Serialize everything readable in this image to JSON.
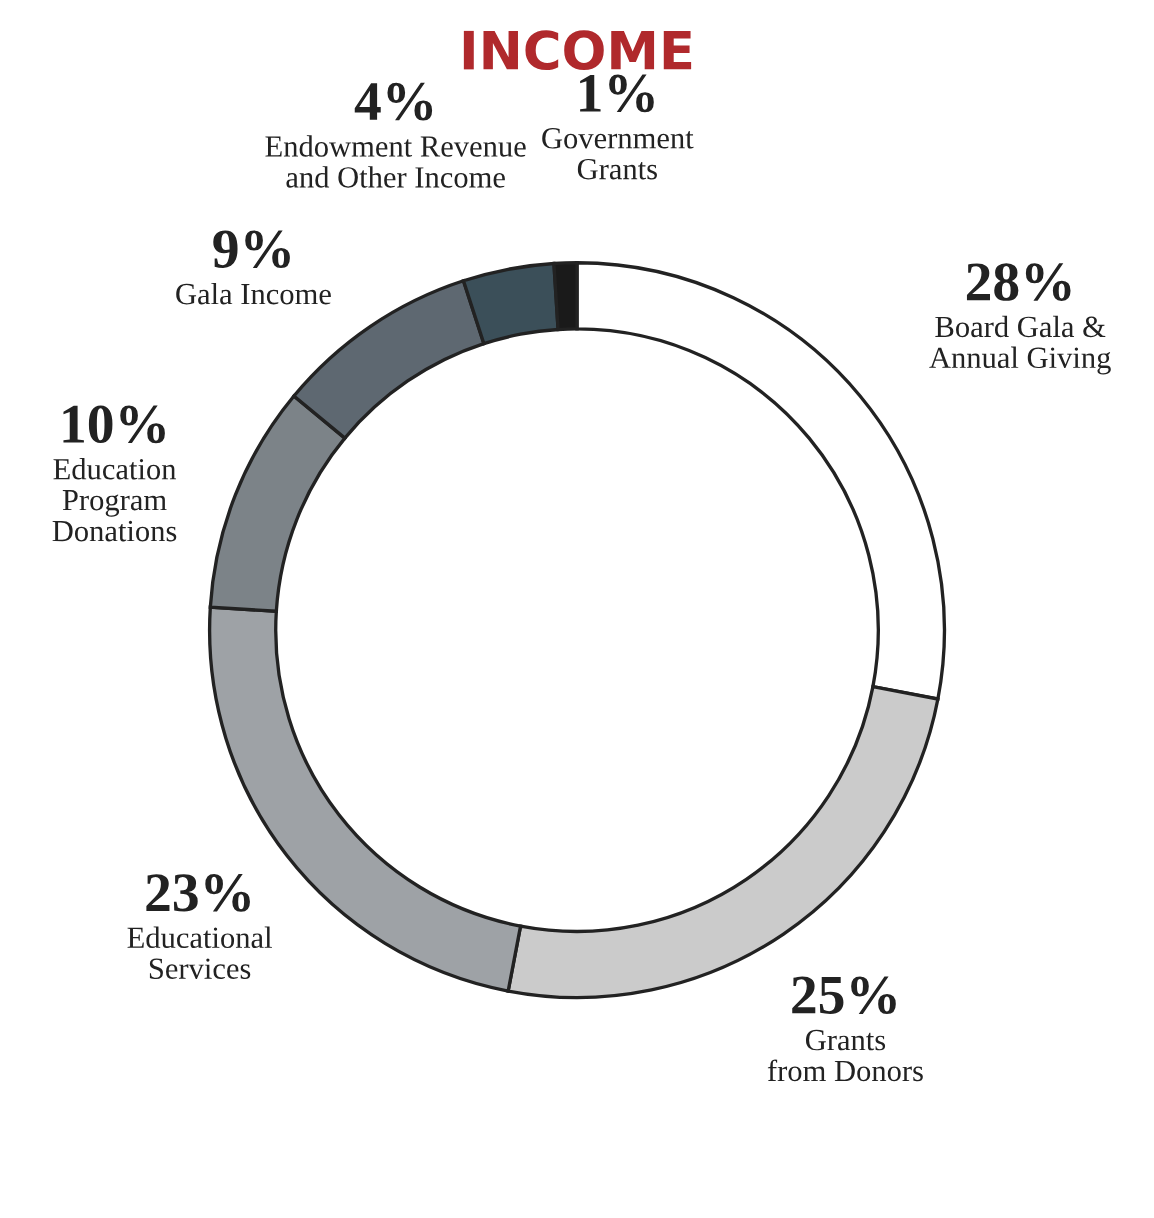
{
  "chart_data": {
    "type": "donut",
    "title": "INCOME",
    "categories": [
      "Board Gala &\nAnnual Giving",
      "Grants\nfrom Donors",
      "Educational\nServices",
      "Education\nProgram\nDonations",
      "Gala Income",
      "Endowment Revenue\nand Other Income",
      "Government\nGrants"
    ],
    "values": [
      28,
      25,
      23,
      10,
      9,
      4,
      1
    ],
    "value_labels": [
      "28%",
      "25%",
      "23%",
      "10%",
      "9%",
      "4%",
      "1%"
    ],
    "colors": [
      "#ffffff",
      "#cbcbcb",
      "#9ea2a6",
      "#7c8388",
      "#5e6871",
      "#3b4f59",
      "#1a1a1a"
    ]
  }
}
